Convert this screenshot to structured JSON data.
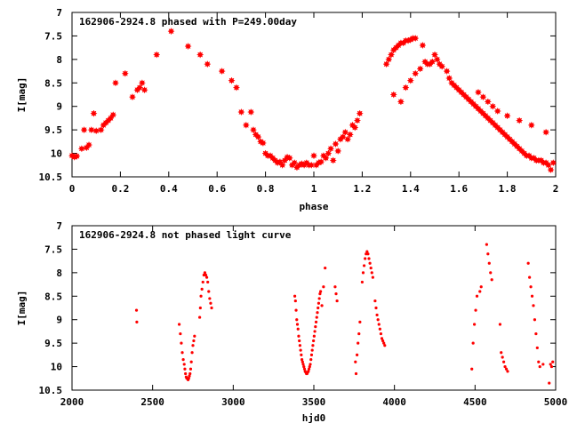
{
  "chart_data": [
    {
      "type": "scatter",
      "title": "162906-2924.8 phased with P=249.00day",
      "xlabel": "phase",
      "ylabel": "I[mag]",
      "xlim": [
        0,
        2
      ],
      "ylim": [
        7,
        10.5
      ],
      "y_inverted": true,
      "x_ticks": [
        "0",
        "0.2",
        "0.4",
        "0.6",
        "0.8",
        "1",
        "1.2",
        "1.4",
        "1.6",
        "1.8",
        "2"
      ],
      "y_ticks": [
        "7",
        "7.5",
        "8",
        "8.5",
        "9",
        "9.5",
        "10",
        "10.5"
      ],
      "marker": "star",
      "color": "#ff0000",
      "series": [
        {
          "x": [
            0.0,
            0.01,
            0.02,
            0.04,
            0.05,
            0.06,
            0.07,
            0.08,
            0.09,
            0.1,
            0.12,
            0.13,
            0.14,
            0.15,
            0.16,
            0.17,
            0.18,
            0.22,
            0.25,
            0.27,
            0.28,
            0.29,
            0.3,
            0.35,
            0.41,
            0.48,
            0.53,
            0.56,
            0.62,
            0.66,
            0.68,
            0.7,
            0.72,
            0.74,
            0.75,
            0.76,
            0.77,
            0.78,
            0.79,
            0.8,
            0.81,
            0.82,
            0.83,
            0.84,
            0.85,
            0.86,
            0.87,
            0.88,
            0.89,
            0.9,
            0.91,
            0.92,
            0.93,
            0.94,
            0.95,
            0.96,
            0.97,
            0.98,
            0.99,
            1.0,
            1.01,
            1.02,
            1.03,
            1.04,
            1.05,
            1.06,
            1.07,
            1.08,
            1.09,
            1.1,
            1.11,
            1.12,
            1.13,
            1.14,
            1.15,
            1.16,
            1.17,
            1.18,
            1.19,
            1.3,
            1.31,
            1.32,
            1.33,
            1.34,
            1.35,
            1.36,
            1.37,
            1.38,
            1.39,
            1.4,
            1.41,
            1.42,
            1.33,
            1.36,
            1.38,
            1.4,
            1.42,
            1.44,
            1.45,
            1.46,
            1.47,
            1.48,
            1.49,
            1.5,
            1.51,
            1.52,
            1.53,
            1.55,
            1.56,
            1.57,
            1.58,
            1.59,
            1.6,
            1.61,
            1.62,
            1.63,
            1.64,
            1.65,
            1.66,
            1.67,
            1.68,
            1.69,
            1.7,
            1.71,
            1.72,
            1.73,
            1.74,
            1.75,
            1.76,
            1.77,
            1.78,
            1.79,
            1.8,
            1.81,
            1.82,
            1.83,
            1.84,
            1.85,
            1.86,
            1.87,
            1.88,
            1.89,
            1.9,
            1.91,
            1.92,
            1.93,
            1.94,
            1.95,
            1.96,
            1.97,
            1.98,
            1.99,
            1.68,
            1.7,
            1.72,
            1.74,
            1.76,
            1.8,
            1.85,
            1.9,
            1.96
          ],
          "y": [
            10.05,
            10.08,
            10.06,
            9.9,
            9.5,
            9.88,
            9.82,
            9.5,
            9.15,
            9.52,
            9.5,
            9.4,
            9.35,
            9.3,
            9.25,
            9.18,
            8.5,
            8.3,
            8.8,
            8.65,
            8.6,
            8.5,
            8.65,
            7.9,
            7.4,
            7.72,
            7.9,
            8.1,
            8.25,
            8.45,
            8.6,
            9.12,
            9.4,
            9.12,
            9.5,
            9.6,
            9.65,
            9.75,
            9.78,
            10.0,
            10.05,
            10.05,
            10.1,
            10.15,
            10.2,
            10.18,
            10.25,
            10.15,
            10.08,
            10.1,
            10.25,
            10.2,
            10.3,
            10.25,
            10.22,
            10.25,
            10.2,
            10.25,
            10.25,
            10.05,
            10.25,
            10.2,
            10.18,
            10.05,
            10.1,
            10.0,
            9.9,
            10.15,
            9.8,
            9.95,
            9.7,
            9.65,
            9.55,
            9.7,
            9.6,
            9.4,
            9.45,
            9.3,
            9.15,
            8.1,
            8.0,
            7.9,
            7.8,
            7.75,
            7.7,
            7.65,
            7.65,
            7.6,
            7.6,
            7.58,
            7.55,
            7.55,
            8.75,
            8.9,
            8.6,
            8.45,
            8.3,
            8.2,
            7.7,
            8.05,
            8.1,
            8.1,
            8.05,
            7.9,
            8.0,
            8.1,
            8.15,
            8.25,
            8.4,
            8.5,
            8.55,
            8.6,
            8.65,
            8.7,
            8.75,
            8.8,
            8.85,
            8.9,
            8.95,
            9.0,
            9.05,
            9.1,
            9.15,
            9.2,
            9.25,
            9.3,
            9.35,
            9.4,
            9.45,
            9.5,
            9.55,
            9.6,
            9.65,
            9.7,
            9.75,
            9.8,
            9.85,
            9.9,
            9.95,
            10.0,
            10.05,
            10.05,
            10.1,
            10.1,
            10.15,
            10.15,
            10.15,
            10.2,
            10.2,
            10.25,
            10.35,
            10.2,
            8.7,
            8.8,
            8.9,
            9.0,
            9.1,
            9.2,
            9.3,
            9.4,
            9.55
          ]
        }
      ]
    },
    {
      "type": "scatter",
      "title": "162906-2924.8 not phased light curve",
      "xlabel": "hjd0",
      "ylabel": "I[mag]",
      "xlim": [
        2000,
        5000
      ],
      "ylim": [
        7,
        10.5
      ],
      "y_inverted": true,
      "x_ticks": [
        "2000",
        "2500",
        "3000",
        "3500",
        "4000",
        "4500",
        "5000"
      ],
      "y_ticks": [
        "7",
        "7.5",
        "8",
        "8.5",
        "9",
        "9.5",
        "10",
        "10.5"
      ],
      "marker": "dot",
      "color": "#ff0000",
      "series": [
        {
          "x": [
            2400,
            2402,
            2665,
            2672,
            2678,
            2684,
            2690,
            2696,
            2700,
            2704,
            2708,
            2712,
            2716,
            2720,
            2724,
            2728,
            2732,
            2736,
            2740,
            2745,
            2750,
            2755,
            2760,
            2792,
            2796,
            2800,
            2806,
            2812,
            2818,
            2824,
            2830,
            2836,
            2842,
            2848,
            2854,
            2860,
            2866,
            3382,
            3386,
            3390,
            3394,
            3398,
            3402,
            3406,
            3410,
            3414,
            3418,
            3422,
            3426,
            3430,
            3434,
            3438,
            3442,
            3446,
            3450,
            3454,
            3458,
            3462,
            3466,
            3470,
            3474,
            3478,
            3482,
            3486,
            3490,
            3494,
            3498,
            3502,
            3506,
            3510,
            3514,
            3518,
            3522,
            3526,
            3530,
            3534,
            3538,
            3542,
            3550,
            3560,
            3570,
            3632,
            3638,
            3644,
            3758,
            3762,
            3768,
            3774,
            3780,
            3786,
            3800,
            3806,
            3812,
            3818,
            3824,
            3830,
            3836,
            3842,
            3848,
            3854,
            3860,
            3866,
            3880,
            3886,
            3892,
            3898,
            3904,
            3910,
            3916,
            3922,
            3928,
            3934,
            3940,
            4480,
            4488,
            4496,
            4504,
            4512,
            4530,
            4538,
            4572,
            4580,
            4588,
            4596,
            4604,
            4655,
            4662,
            4670,
            4678,
            4686,
            4694,
            4702,
            4830,
            4838,
            4846,
            4854,
            4862,
            4870,
            4878,
            4886,
            4894,
            4902,
            4922,
            4960,
            4968,
            4975,
            4982
          ],
          "y": [
            8.8,
            9.05,
            9.1,
            9.3,
            9.5,
            9.7,
            9.85,
            9.95,
            10.05,
            10.15,
            10.22,
            10.25,
            10.25,
            10.28,
            10.25,
            10.2,
            10.15,
            10.05,
            9.9,
            9.7,
            9.55,
            9.45,
            9.35,
            8.95,
            8.75,
            8.5,
            8.35,
            8.2,
            8.05,
            8.0,
            8.05,
            8.1,
            8.2,
            8.4,
            8.55,
            8.65,
            8.75,
            8.5,
            8.6,
            8.8,
            9.0,
            9.1,
            9.2,
            9.35,
            9.45,
            9.55,
            9.65,
            9.75,
            9.85,
            9.9,
            9.95,
            10.0,
            10.05,
            10.1,
            10.12,
            10.15,
            10.15,
            10.12,
            10.1,
            10.05,
            10.0,
            9.95,
            9.85,
            9.75,
            9.65,
            9.55,
            9.45,
            9.35,
            9.25,
            9.15,
            9.05,
            8.95,
            8.85,
            8.75,
            8.65,
            8.55,
            8.45,
            8.4,
            8.7,
            8.3,
            7.9,
            8.3,
            8.45,
            8.6,
            9.9,
            10.15,
            9.75,
            9.5,
            9.3,
            9.05,
            8.2,
            8.0,
            7.85,
            7.7,
            7.6,
            7.55,
            7.6,
            7.7,
            7.8,
            7.9,
            8.0,
            8.1,
            8.6,
            8.75,
            8.9,
            9.0,
            9.1,
            9.2,
            9.3,
            9.4,
            9.45,
            9.5,
            9.55,
            10.05,
            9.5,
            9.1,
            8.8,
            8.5,
            8.4,
            8.3,
            7.4,
            7.6,
            7.8,
            8.0,
            8.15,
            9.1,
            9.7,
            9.8,
            9.9,
            10.0,
            10.05,
            10.1,
            7.8,
            8.1,
            8.3,
            8.5,
            8.7,
            9.0,
            9.3,
            9.6,
            9.9,
            10.0,
            9.95,
            10.35,
            9.95,
            10.0,
            9.9
          ]
        }
      ]
    }
  ]
}
